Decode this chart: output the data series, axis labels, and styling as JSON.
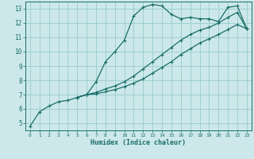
{
  "xlabel": "Humidex (Indice chaleur)",
  "bg_color": "#cce8ea",
  "grid_color": "#99cccc",
  "line_color": "#1a6e6a",
  "xlim": [
    -0.5,
    23.5
  ],
  "ylim": [
    4.5,
    13.5
  ],
  "xticks": [
    0,
    1,
    2,
    3,
    4,
    5,
    6,
    7,
    8,
    9,
    10,
    11,
    12,
    13,
    14,
    15,
    16,
    17,
    18,
    19,
    20,
    21,
    22,
    23
  ],
  "yticks": [
    5,
    6,
    7,
    8,
    9,
    10,
    11,
    12,
    13
  ],
  "series1_x": [
    0,
    1,
    2,
    3,
    4,
    5,
    6,
    7,
    8,
    9,
    10,
    11,
    12,
    13,
    14,
    15,
    16,
    17,
    18,
    19,
    20,
    21,
    22,
    23
  ],
  "series1_y": [
    4.8,
    5.8,
    6.2,
    6.5,
    6.6,
    6.8,
    7.0,
    7.9,
    9.3,
    10.0,
    10.8,
    12.5,
    13.1,
    13.3,
    13.2,
    12.6,
    12.3,
    12.4,
    12.3,
    12.3,
    12.1,
    13.1,
    13.2,
    11.6
  ],
  "series2_x": [
    5,
    6,
    7,
    8,
    9,
    10,
    11,
    12,
    13,
    14,
    15,
    16,
    17,
    18,
    19,
    20,
    21,
    22,
    23
  ],
  "series2_y": [
    6.8,
    7.0,
    7.15,
    7.4,
    7.6,
    7.9,
    8.3,
    8.8,
    9.3,
    9.8,
    10.3,
    10.8,
    11.2,
    11.5,
    11.7,
    12.0,
    12.4,
    12.75,
    11.6
  ],
  "series3_x": [
    5,
    6,
    7,
    8,
    9,
    10,
    11,
    12,
    13,
    14,
    15,
    16,
    17,
    18,
    19,
    20,
    21,
    22,
    23
  ],
  "series3_y": [
    6.8,
    7.0,
    7.05,
    7.2,
    7.35,
    7.55,
    7.8,
    8.1,
    8.5,
    8.9,
    9.3,
    9.8,
    10.2,
    10.6,
    10.9,
    11.2,
    11.55,
    11.9,
    11.6
  ]
}
